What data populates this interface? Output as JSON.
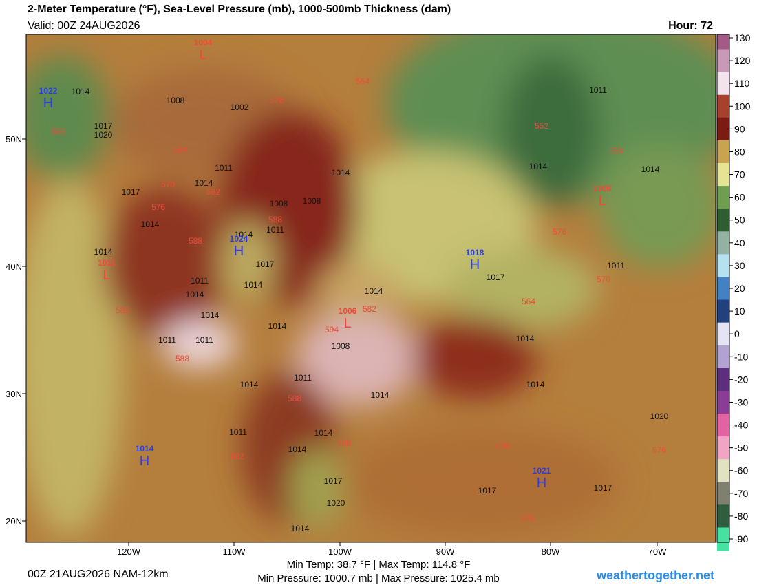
{
  "header": {
    "title": "2-Meter Temperature (°F), Sea-Level Pressure (mb), 1000-500mb Thickness (dam)",
    "valid": "Valid: 00Z 24AUG2026",
    "hour": "Hour: 72"
  },
  "map": {
    "lat_labels": [
      "50N",
      "40N",
      "30N",
      "20N"
    ],
    "lon_labels": [
      "120W",
      "110W",
      "100W",
      "90W",
      "80W",
      "70W"
    ],
    "centers": [
      {
        "letter": "H",
        "pressure": "1022"
      },
      {
        "letter": "L",
        "pressure": "1004"
      },
      {
        "letter": "H",
        "pressure": "1024"
      },
      {
        "letter": "L",
        "pressure": "1011"
      },
      {
        "letter": "H",
        "pressure": "1018"
      },
      {
        "letter": "L",
        "pressure": "1006"
      },
      {
        "letter": "H",
        "pressure": "1014"
      },
      {
        "letter": "H",
        "pressure": "1021"
      },
      {
        "letter": "L",
        "pressure": "1008"
      }
    ],
    "isobar_labels": [
      "1014",
      "1008",
      "1002",
      "1017",
      "1020",
      "1011",
      "1014",
      "1017",
      "1014",
      "1008",
      "1008",
      "1014",
      "1011",
      "1014",
      "1017",
      "1014",
      "1011",
      "1014",
      "1014",
      "1014",
      "1017",
      "1014",
      "1011",
      "1014",
      "1008",
      "1011",
      "1014",
      "1014",
      "1014",
      "1014",
      "1011",
      "1014",
      "1014",
      "1011",
      "1011",
      "1014",
      "1014",
      "1017",
      "1020",
      "1014",
      "1017",
      "1017",
      "1020",
      "1011"
    ],
    "thickness_labels": [
      "558",
      "564",
      "570",
      "576",
      "582",
      "588",
      "588",
      "582",
      "588",
      "594",
      "582",
      "588",
      "588",
      "582",
      "576",
      "564",
      "552",
      "564",
      "564",
      "570",
      "576",
      "576",
      "576",
      "576"
    ]
  },
  "colorbar": {
    "ticks": [
      130,
      120,
      110,
      100,
      90,
      80,
      70,
      60,
      50,
      40,
      30,
      20,
      10,
      0,
      -10,
      -20,
      -30,
      -40,
      -50,
      -60,
      -70,
      -80,
      -90
    ],
    "colors": [
      "#a45a86",
      "#c89ab8",
      "#f2e4ec",
      "#a8402e",
      "#7a1c12",
      "#c8a450",
      "#e4e492",
      "#6e9e4e",
      "#2e5e30",
      "#92b2a2",
      "#b4e2f0",
      "#4282c2",
      "#20407e",
      "#e4e4f2",
      "#b2a2d2",
      "#5e2e7e",
      "#8a3c96",
      "#e262a2",
      "#f2a4c4",
      "#e2e2c2",
      "#808070",
      "#2e5e3e",
      "#46e2a2"
    ]
  },
  "footer": {
    "run": "00Z 21AUG2026 NAM-12km",
    "temps": "Min Temp:  38.7 °F | Max Temp: 114.8 °F",
    "pressures": "Min Pressure: 1000.7 mb | Max Pressure: 1025.4 mb",
    "site": "weathertogether.net"
  }
}
